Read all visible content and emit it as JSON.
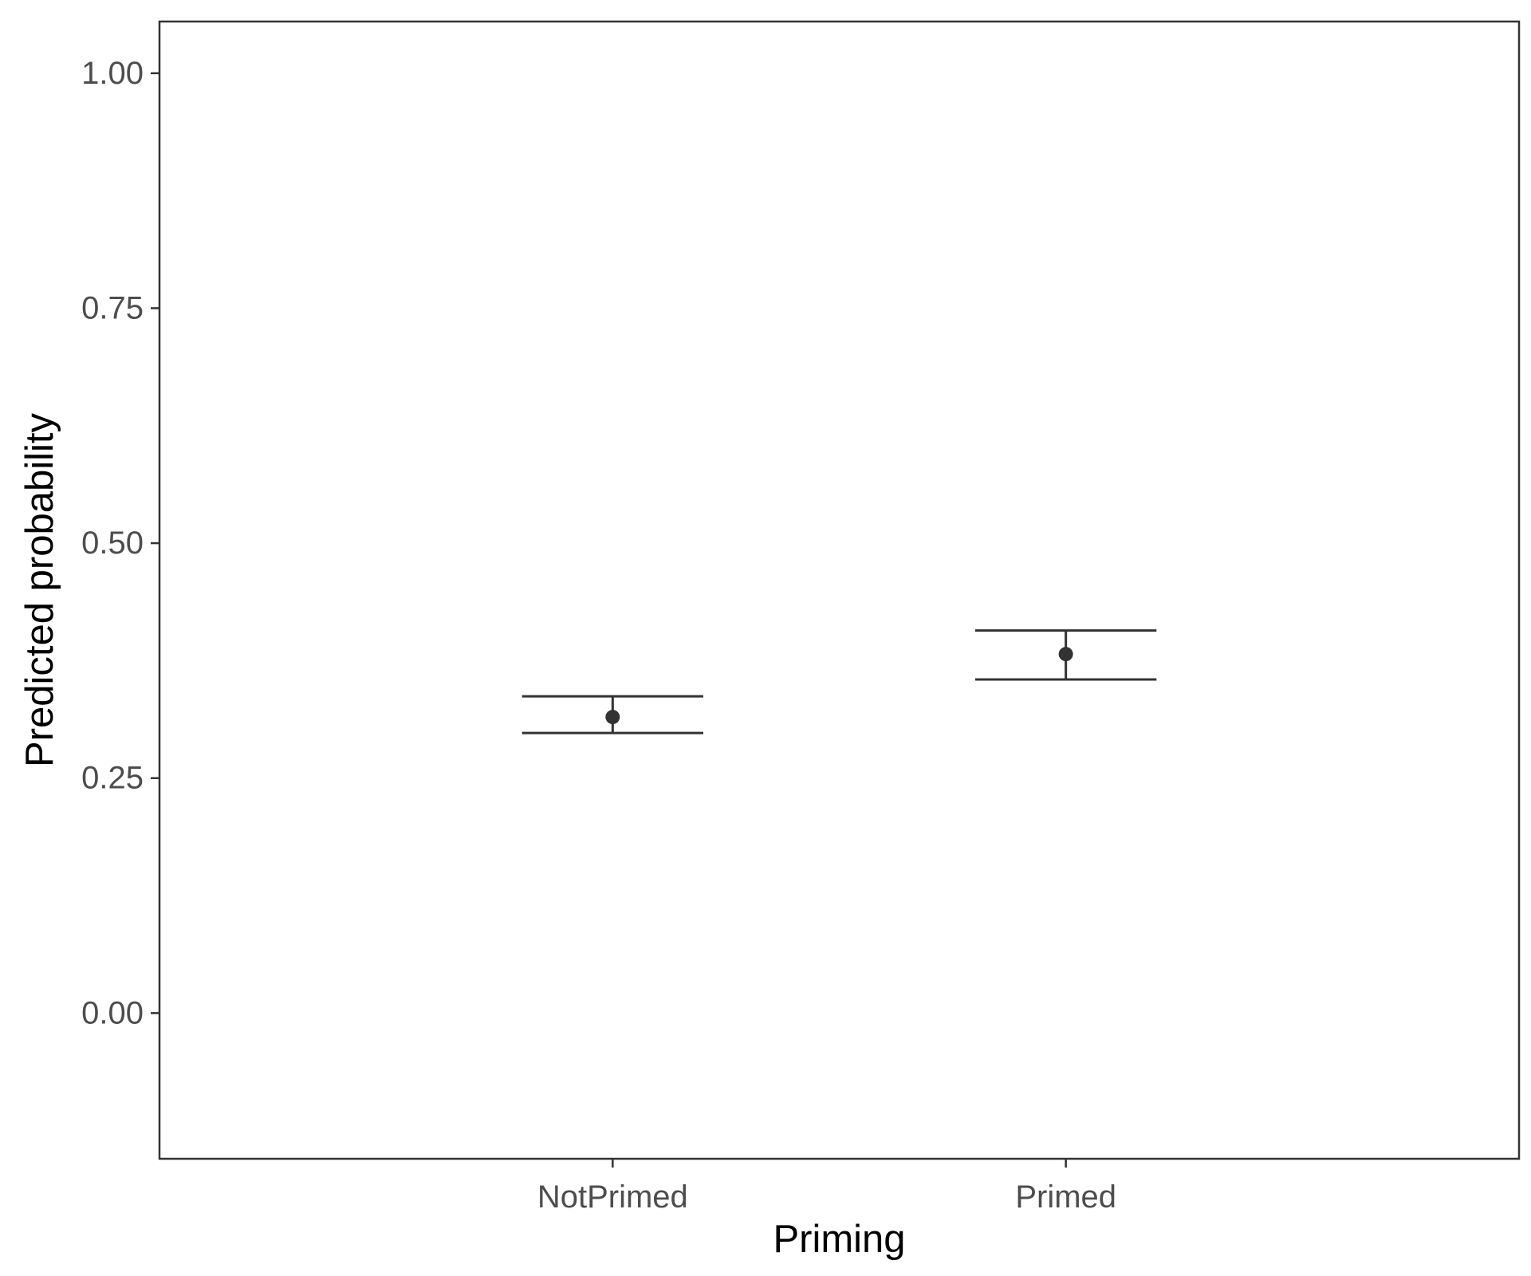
{
  "chart_data": {
    "type": "scatter",
    "title": "",
    "xlabel": "Priming",
    "ylabel": "Predicted probability",
    "categories": [
      "NotPrimed",
      "Primed"
    ],
    "series": [
      {
        "values": [
          0.315,
          0.382
        ],
        "error_low": [
          0.298,
          0.355
        ],
        "error_high": [
          0.337,
          0.407
        ]
      }
    ],
    "ylim": [
      -0.155,
      1.055
    ],
    "yticks": [
      0.0,
      0.25,
      0.5,
      0.75,
      1.0
    ],
    "ytick_labels": [
      "0.00",
      "0.25",
      "0.50",
      "0.75",
      "1.00"
    ],
    "grid": false,
    "legend": "none",
    "colors": {
      "marks": "#333333",
      "axis": "#333333",
      "tick_text": "#4d4d4d"
    }
  }
}
